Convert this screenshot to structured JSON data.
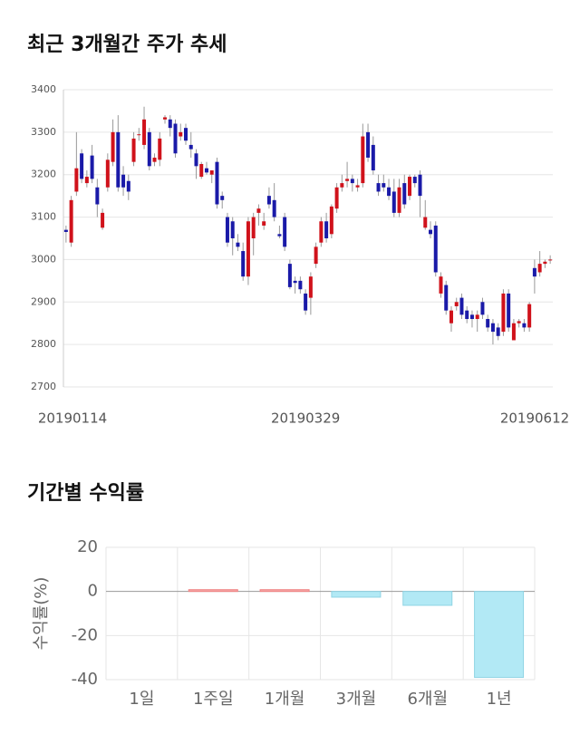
{
  "chart_data": [
    {
      "type": "candlestick",
      "title": "최근 3개월간 주가 추세",
      "categories": [
        "20190114",
        null,
        null,
        null,
        null,
        null,
        null,
        null,
        null,
        null,
        null,
        null,
        null,
        null,
        null,
        null,
        null,
        null,
        null,
        null,
        null,
        null,
        null,
        null,
        null,
        null,
        null,
        null,
        null,
        null,
        null,
        null,
        null,
        null,
        null,
        null,
        null,
        null,
        null,
        null,
        null,
        null,
        null,
        null,
        null,
        null,
        "20190329",
        null,
        null,
        null,
        null,
        null,
        null,
        null,
        null,
        null,
        null,
        null,
        null,
        null,
        null,
        null,
        null,
        null,
        null,
        null,
        null,
        null,
        null,
        null,
        null,
        null,
        null,
        null,
        null,
        null,
        null,
        null,
        null,
        null,
        null,
        null,
        null,
        null,
        null,
        null,
        null,
        null,
        null,
        null,
        null,
        null,
        null,
        "20190612"
      ],
      "open": [
        3070,
        3040,
        3160,
        3250,
        3180,
        3245,
        3170,
        3075,
        3170,
        3230,
        3300,
        3200,
        3185,
        3230,
        3295,
        3270,
        3300,
        3230,
        3235,
        3330,
        3330,
        3320,
        3290,
        3310,
        3270,
        3250,
        3195,
        3215,
        3200,
        3230,
        3150,
        3100,
        3090,
        3040,
        3020,
        2960,
        3050,
        3110,
        3080,
        3150,
        3140,
        3060,
        3100,
        2990,
        2950,
        2950,
        2920,
        2910,
        2990,
        3040,
        3090,
        3060,
        3120,
        3170,
        3185,
        3190,
        3170,
        3180,
        3300,
        3270,
        3180,
        3180,
        3170,
        3160,
        3110,
        3180,
        3150,
        3195,
        3200,
        3075,
        3070,
        3080,
        2920,
        2940,
        2850,
        2890,
        2910,
        2880,
        2870,
        2860,
        2900,
        2860,
        2850,
        2840,
        2830,
        2920,
        2810,
        2850,
        2850,
        2840,
        2980,
        2970,
        2990,
        3000
      ],
      "high": [
        3080,
        3150,
        3300,
        3260,
        3210,
        3270,
        3190,
        3120,
        3250,
        3330,
        3340,
        3220,
        3200,
        3300,
        3310,
        3360,
        3310,
        3250,
        3300,
        3340,
        3340,
        3330,
        3320,
        3320,
        3300,
        3260,
        3230,
        3230,
        3210,
        3240,
        3160,
        3110,
        3100,
        3060,
        3040,
        3100,
        3110,
        3130,
        3110,
        3170,
        3180,
        3080,
        3110,
        3000,
        2960,
        2960,
        2930,
        2970,
        3040,
        3100,
        3110,
        3130,
        3180,
        3200,
        3230,
        3200,
        3190,
        3320,
        3320,
        3290,
        3200,
        3200,
        3190,
        3190,
        3190,
        3200,
        3200,
        3200,
        3210,
        3140,
        3090,
        3090,
        2970,
        2950,
        2890,
        2910,
        2920,
        2890,
        2880,
        2880,
        2910,
        2870,
        2860,
        2850,
        2930,
        2930,
        2860,
        2860,
        2860,
        2900,
        3000,
        3020,
        3000,
        3010
      ],
      "low": [
        3040,
        3030,
        3150,
        3180,
        3170,
        3180,
        3100,
        3070,
        3160,
        3220,
        3160,
        3150,
        3140,
        3220,
        3280,
        3260,
        3210,
        3220,
        3220,
        3320,
        3290,
        3240,
        3280,
        3270,
        3240,
        3190,
        3190,
        3200,
        3180,
        3120,
        3120,
        3030,
        3010,
        3020,
        2950,
        2940,
        3010,
        3080,
        3070,
        3120,
        3090,
        3050,
        3020,
        2930,
        2920,
        2920,
        2870,
        2870,
        2980,
        3030,
        3040,
        3050,
        3110,
        3160,
        3170,
        3160,
        3160,
        3170,
        3230,
        3200,
        3150,
        3160,
        3140,
        3100,
        3100,
        3120,
        3140,
        3170,
        3100,
        3070,
        3050,
        2960,
        2910,
        2870,
        2830,
        2880,
        2860,
        2850,
        2840,
        2830,
        2860,
        2830,
        2800,
        2810,
        2820,
        2830,
        2810,
        2840,
        2830,
        2830,
        2920,
        2960,
        2980,
        2990
      ],
      "close": [
        3065,
        3140,
        3215,
        3190,
        3195,
        3190,
        3130,
        3110,
        3235,
        3300,
        3170,
        3170,
        3160,
        3285,
        3295,
        3330,
        3220,
        3240,
        3285,
        3335,
        3310,
        3250,
        3300,
        3280,
        3260,
        3220,
        3225,
        3205,
        3210,
        3130,
        3140,
        3040,
        3050,
        3030,
        2960,
        3090,
        3100,
        3120,
        3090,
        3130,
        3100,
        3055,
        3030,
        2935,
        2945,
        2930,
        2880,
        2960,
        3030,
        3090,
        3050,
        3125,
        3170,
        3180,
        3190,
        3180,
        3175,
        3290,
        3240,
        3210,
        3160,
        3170,
        3150,
        3110,
        3170,
        3130,
        3195,
        3180,
        3150,
        3100,
        3060,
        2970,
        2960,
        2880,
        2880,
        2900,
        2870,
        2860,
        2860,
        2870,
        2870,
        2840,
        2830,
        2820,
        2920,
        2840,
        2850,
        2855,
        2840,
        2895,
        2960,
        2990,
        2995,
        3000
      ],
      "up_color": "#d0121b",
      "down_color": "#1a1aa8",
      "ylim": [
        2700,
        3400
      ],
      "yticks": [
        2700,
        2800,
        2900,
        3000,
        3100,
        3200,
        3300,
        3400
      ],
      "grid": true
    },
    {
      "type": "bar",
      "title": "기간별 수익률",
      "ylabel": "수익률(%)",
      "categories": [
        "1일",
        "1주일",
        "1개월",
        "3개월",
        "6개월",
        "1년"
      ],
      "values": [
        0,
        0.8,
        0.8,
        -2.6,
        -6.3,
        -39
      ],
      "positive_color": "#f6a9a9",
      "negative_color": "#b2e9f5",
      "ylim": [
        -40,
        20
      ],
      "yticks": [
        20,
        0,
        -20,
        -40
      ],
      "grid": true
    }
  ]
}
